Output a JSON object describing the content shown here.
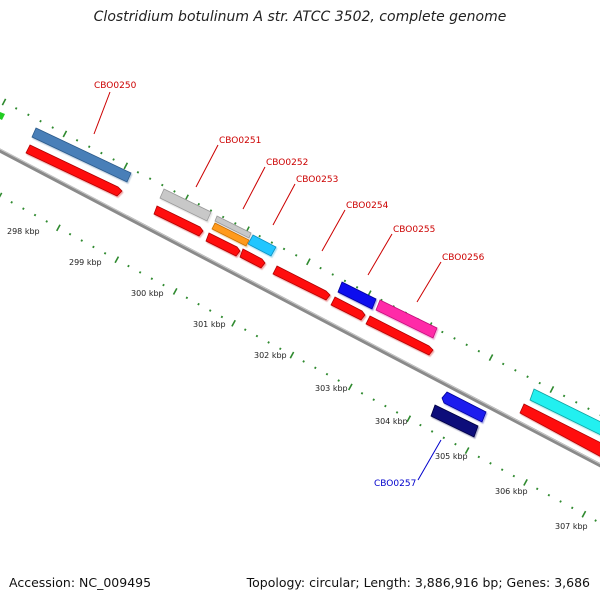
{
  "title": "Clostridium botulinum A str. ATCC 3502, complete genome",
  "footer": {
    "accession": "Accession: NC_009495",
    "summary": "Topology: circular; Length: 3,886,916 bp; Genes: 3,686"
  },
  "colors": {
    "label_red": "#cc0000",
    "label_blue": "#0000cc",
    "backbone": "#8a8a8a",
    "tick": "#2f8a2f",
    "cds_red": "#ff1111"
  },
  "ruler_labels": [
    "298 kbp",
    "299 kbp",
    "300 kbp",
    "301 kbp",
    "302 kbp",
    "303 kbp",
    "304 kbp",
    "305 kbp",
    "306 kbp",
    "307 kbp"
  ],
  "gene_labels": [
    {
      "text": "CBO0250",
      "color": "red"
    },
    {
      "text": "CBO0251",
      "color": "red"
    },
    {
      "text": "CBO0252",
      "color": "red"
    },
    {
      "text": "CBO0253",
      "color": "red"
    },
    {
      "text": "CBO0254",
      "color": "red"
    },
    {
      "text": "CBO0255",
      "color": "red"
    },
    {
      "text": "CBO0256",
      "color": "red"
    },
    {
      "text": "CBO0257",
      "color": "blue"
    }
  ]
}
